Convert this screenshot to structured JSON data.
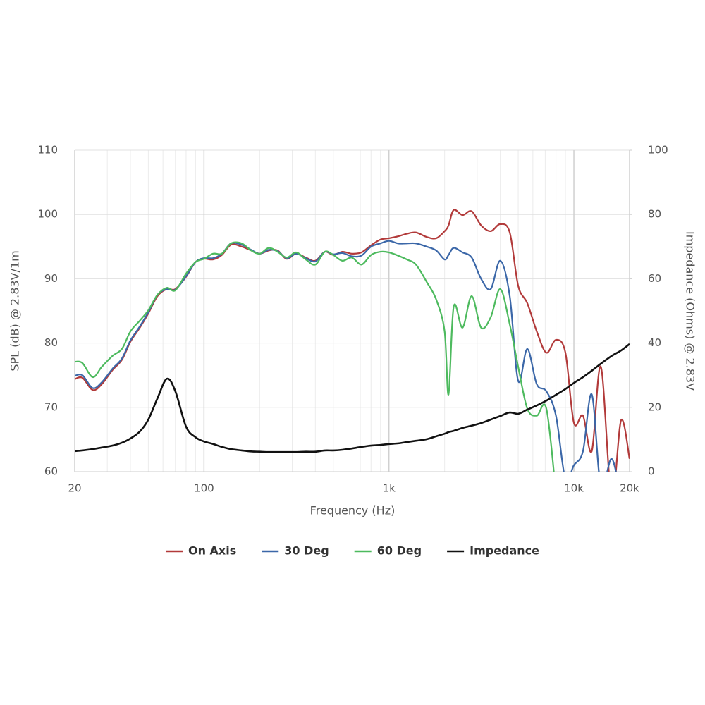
{
  "chart_data": {
    "type": "line",
    "x_label": "Frequency (Hz)",
    "y_label": "SPL (dB) @ 2.83V/1m",
    "y2_label": "Impedance (Ohms) @ 2.83V",
    "x_scale": "log",
    "grid": true,
    "minor_grid": true,
    "legend": "bottom",
    "xlim": [
      20,
      20000
    ],
    "xticks": [
      20,
      100,
      {
        "value": 1000,
        "label": "1k"
      },
      {
        "value": 10000,
        "label": "10k"
      },
      {
        "value": 20000,
        "label": "20k"
      }
    ],
    "ylim": [
      60,
      110
    ],
    "yticks": [
      60,
      70,
      80,
      90,
      100,
      110
    ],
    "y2lim": [
      0,
      100
    ],
    "y2ticks": [
      0,
      20,
      40,
      60,
      80,
      100
    ],
    "x": [
      20,
      22,
      25,
      28,
      32,
      36,
      40,
      45,
      50,
      56,
      63,
      70,
      80,
      90,
      100,
      112,
      125,
      140,
      160,
      180,
      200,
      224,
      250,
      280,
      315,
      355,
      400,
      450,
      500,
      560,
      630,
      710,
      800,
      900,
      1000,
      1120,
      1250,
      1400,
      1600,
      1800,
      2000,
      2100,
      2240,
      2500,
      2800,
      3150,
      3550,
      4000,
      4500,
      5000,
      5600,
      6300,
      7100,
      8000,
      9000,
      10000,
      11200,
      12500,
      14000,
      16000,
      18000,
      20000
    ],
    "series": [
      {
        "name": "On Axis",
        "color": "#b23a3a",
        "values": [
          74.4,
          74.6,
          72.7,
          73.6,
          75.8,
          77.4,
          80.2,
          82.4,
          84.6,
          87.3,
          88.4,
          88.4,
          90.3,
          92.6,
          93.1,
          93.0,
          93.7,
          95.3,
          95.0,
          94.4,
          93.9,
          94.4,
          94.4,
          93.1,
          93.9,
          93.3,
          92.8,
          94.2,
          93.7,
          94.2,
          93.9,
          94.1,
          95.2,
          96.1,
          96.3,
          96.6,
          97.0,
          97.2,
          96.5,
          96.3,
          97.4,
          98.3,
          100.7,
          99.9,
          100.5,
          98.3,
          97.4,
          98.5,
          97.2,
          88.9,
          86.2,
          81.8,
          78.5,
          80.5,
          78.5,
          67.6,
          68.7,
          63.2,
          76.3,
          56.0,
          68.0,
          62.0
        ]
      },
      {
        "name": "30 Deg",
        "color": "#3b67a8",
        "values": [
          74.9,
          75.0,
          73.0,
          73.9,
          76.0,
          77.6,
          80.4,
          82.6,
          84.8,
          87.5,
          88.4,
          88.3,
          90.4,
          92.6,
          93.2,
          93.2,
          93.9,
          95.5,
          95.3,
          94.5,
          93.9,
          94.5,
          94.3,
          93.2,
          93.9,
          93.2,
          92.7,
          94.2,
          93.8,
          94.0,
          93.5,
          93.6,
          95.0,
          95.5,
          95.9,
          95.5,
          95.5,
          95.5,
          95.0,
          94.4,
          93.0,
          93.7,
          94.8,
          94.1,
          93.3,
          90.0,
          88.4,
          92.8,
          87.3,
          74.1,
          79.1,
          73.6,
          72.5,
          68.7,
          58.8,
          61.0,
          63.2,
          72.0,
          57.7,
          62.0,
          56.6,
          56.6
        ]
      },
      {
        "name": "60 Deg",
        "color": "#4dba5e",
        "values": [
          77.1,
          76.9,
          74.7,
          76.3,
          78.0,
          79.1,
          81.8,
          83.5,
          85.1,
          87.5,
          88.6,
          88.2,
          90.8,
          92.6,
          93.1,
          93.9,
          93.9,
          95.5,
          95.5,
          94.4,
          93.9,
          94.8,
          94.2,
          93.3,
          94.1,
          93.0,
          92.2,
          94.2,
          93.7,
          92.8,
          93.3,
          92.2,
          93.7,
          94.2,
          94.1,
          93.6,
          93.0,
          92.2,
          89.5,
          86.8,
          81.8,
          72.0,
          85.7,
          82.4,
          87.3,
          82.4,
          84.0,
          88.4,
          82.9,
          76.3,
          69.8,
          68.7,
          69.8,
          56.6,
          null,
          null,
          null,
          null,
          null,
          null,
          null,
          null
        ]
      },
      {
        "name": "Impedance",
        "color": "#111111",
        "axis": "y2",
        "values": [
          6.4,
          6.6,
          7.0,
          7.5,
          8.1,
          9.0,
          10.3,
          12.5,
          16.2,
          22.8,
          28.9,
          25.0,
          14.0,
          10.7,
          9.4,
          8.6,
          7.7,
          7.0,
          6.6,
          6.3,
          6.2,
          6.1,
          6.1,
          6.1,
          6.1,
          6.2,
          6.2,
          6.6,
          6.6,
          6.8,
          7.2,
          7.7,
          8.1,
          8.3,
          8.6,
          8.8,
          9.2,
          9.6,
          10.1,
          11.0,
          11.8,
          12.3,
          12.7,
          13.6,
          14.3,
          15.1,
          16.2,
          17.3,
          18.4,
          18.0,
          19.3,
          20.6,
          22.1,
          23.9,
          25.7,
          27.6,
          29.4,
          31.4,
          33.6,
          36.0,
          37.7,
          39.7
        ]
      }
    ]
  }
}
